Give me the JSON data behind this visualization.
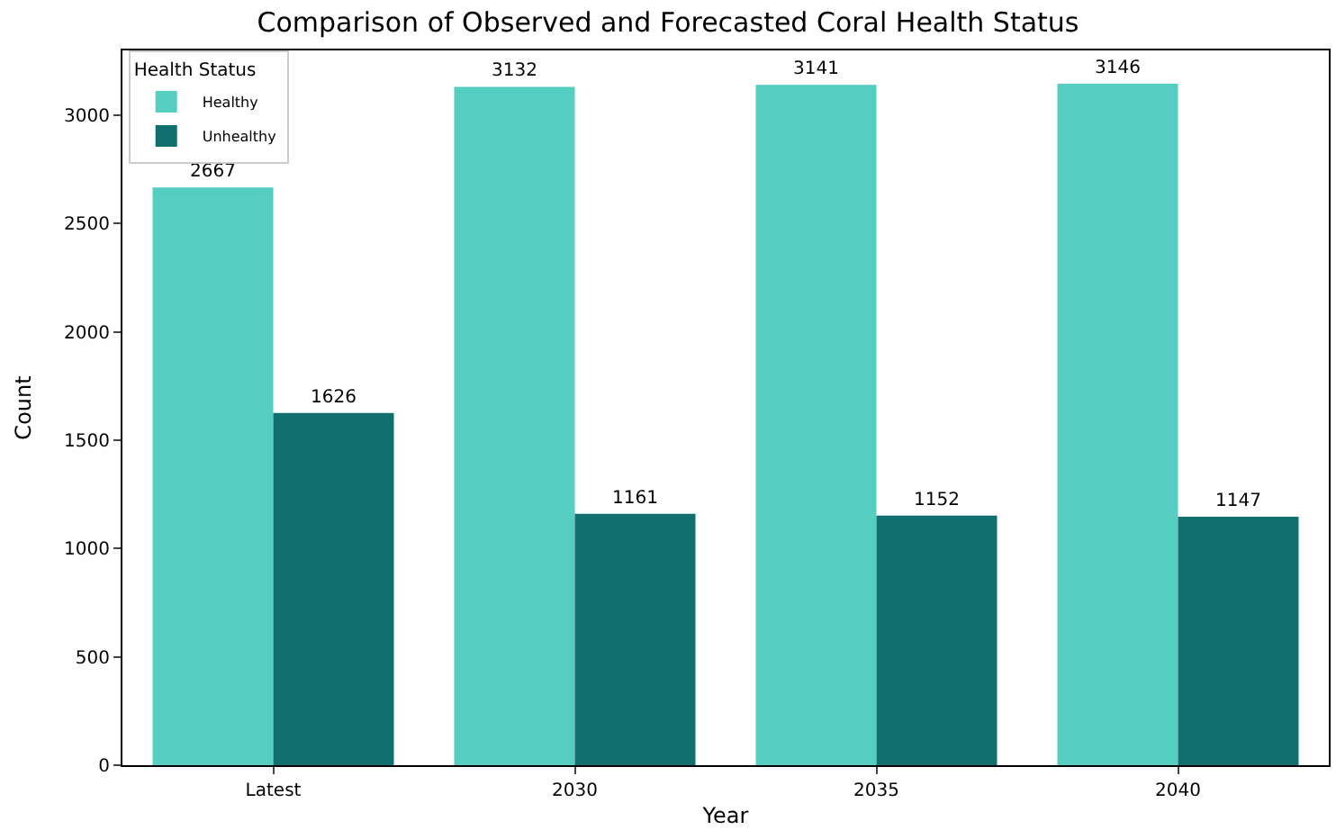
{
  "chart_data": {
    "type": "bar",
    "title": "Comparison of Observed and Forecasted Coral Health Status",
    "xlabel": "Year",
    "ylabel": "Count",
    "legend_title": "Health Status",
    "categories": [
      "Latest",
      "2030",
      "2035",
      "2040"
    ],
    "series": [
      {
        "name": "Healthy",
        "color": "#55cdc0",
        "values": [
          2667,
          3132,
          3141,
          3146
        ]
      },
      {
        "name": "Unhealthy",
        "color": "#107070",
        "values": [
          1626,
          1161,
          1152,
          1147
        ]
      }
    ],
    "ylim": [
      0,
      3300
    ],
    "yticks": [
      0,
      500,
      1000,
      1500,
      2000,
      2500,
      3000
    ],
    "data_labels": true,
    "legend": "top left"
  }
}
